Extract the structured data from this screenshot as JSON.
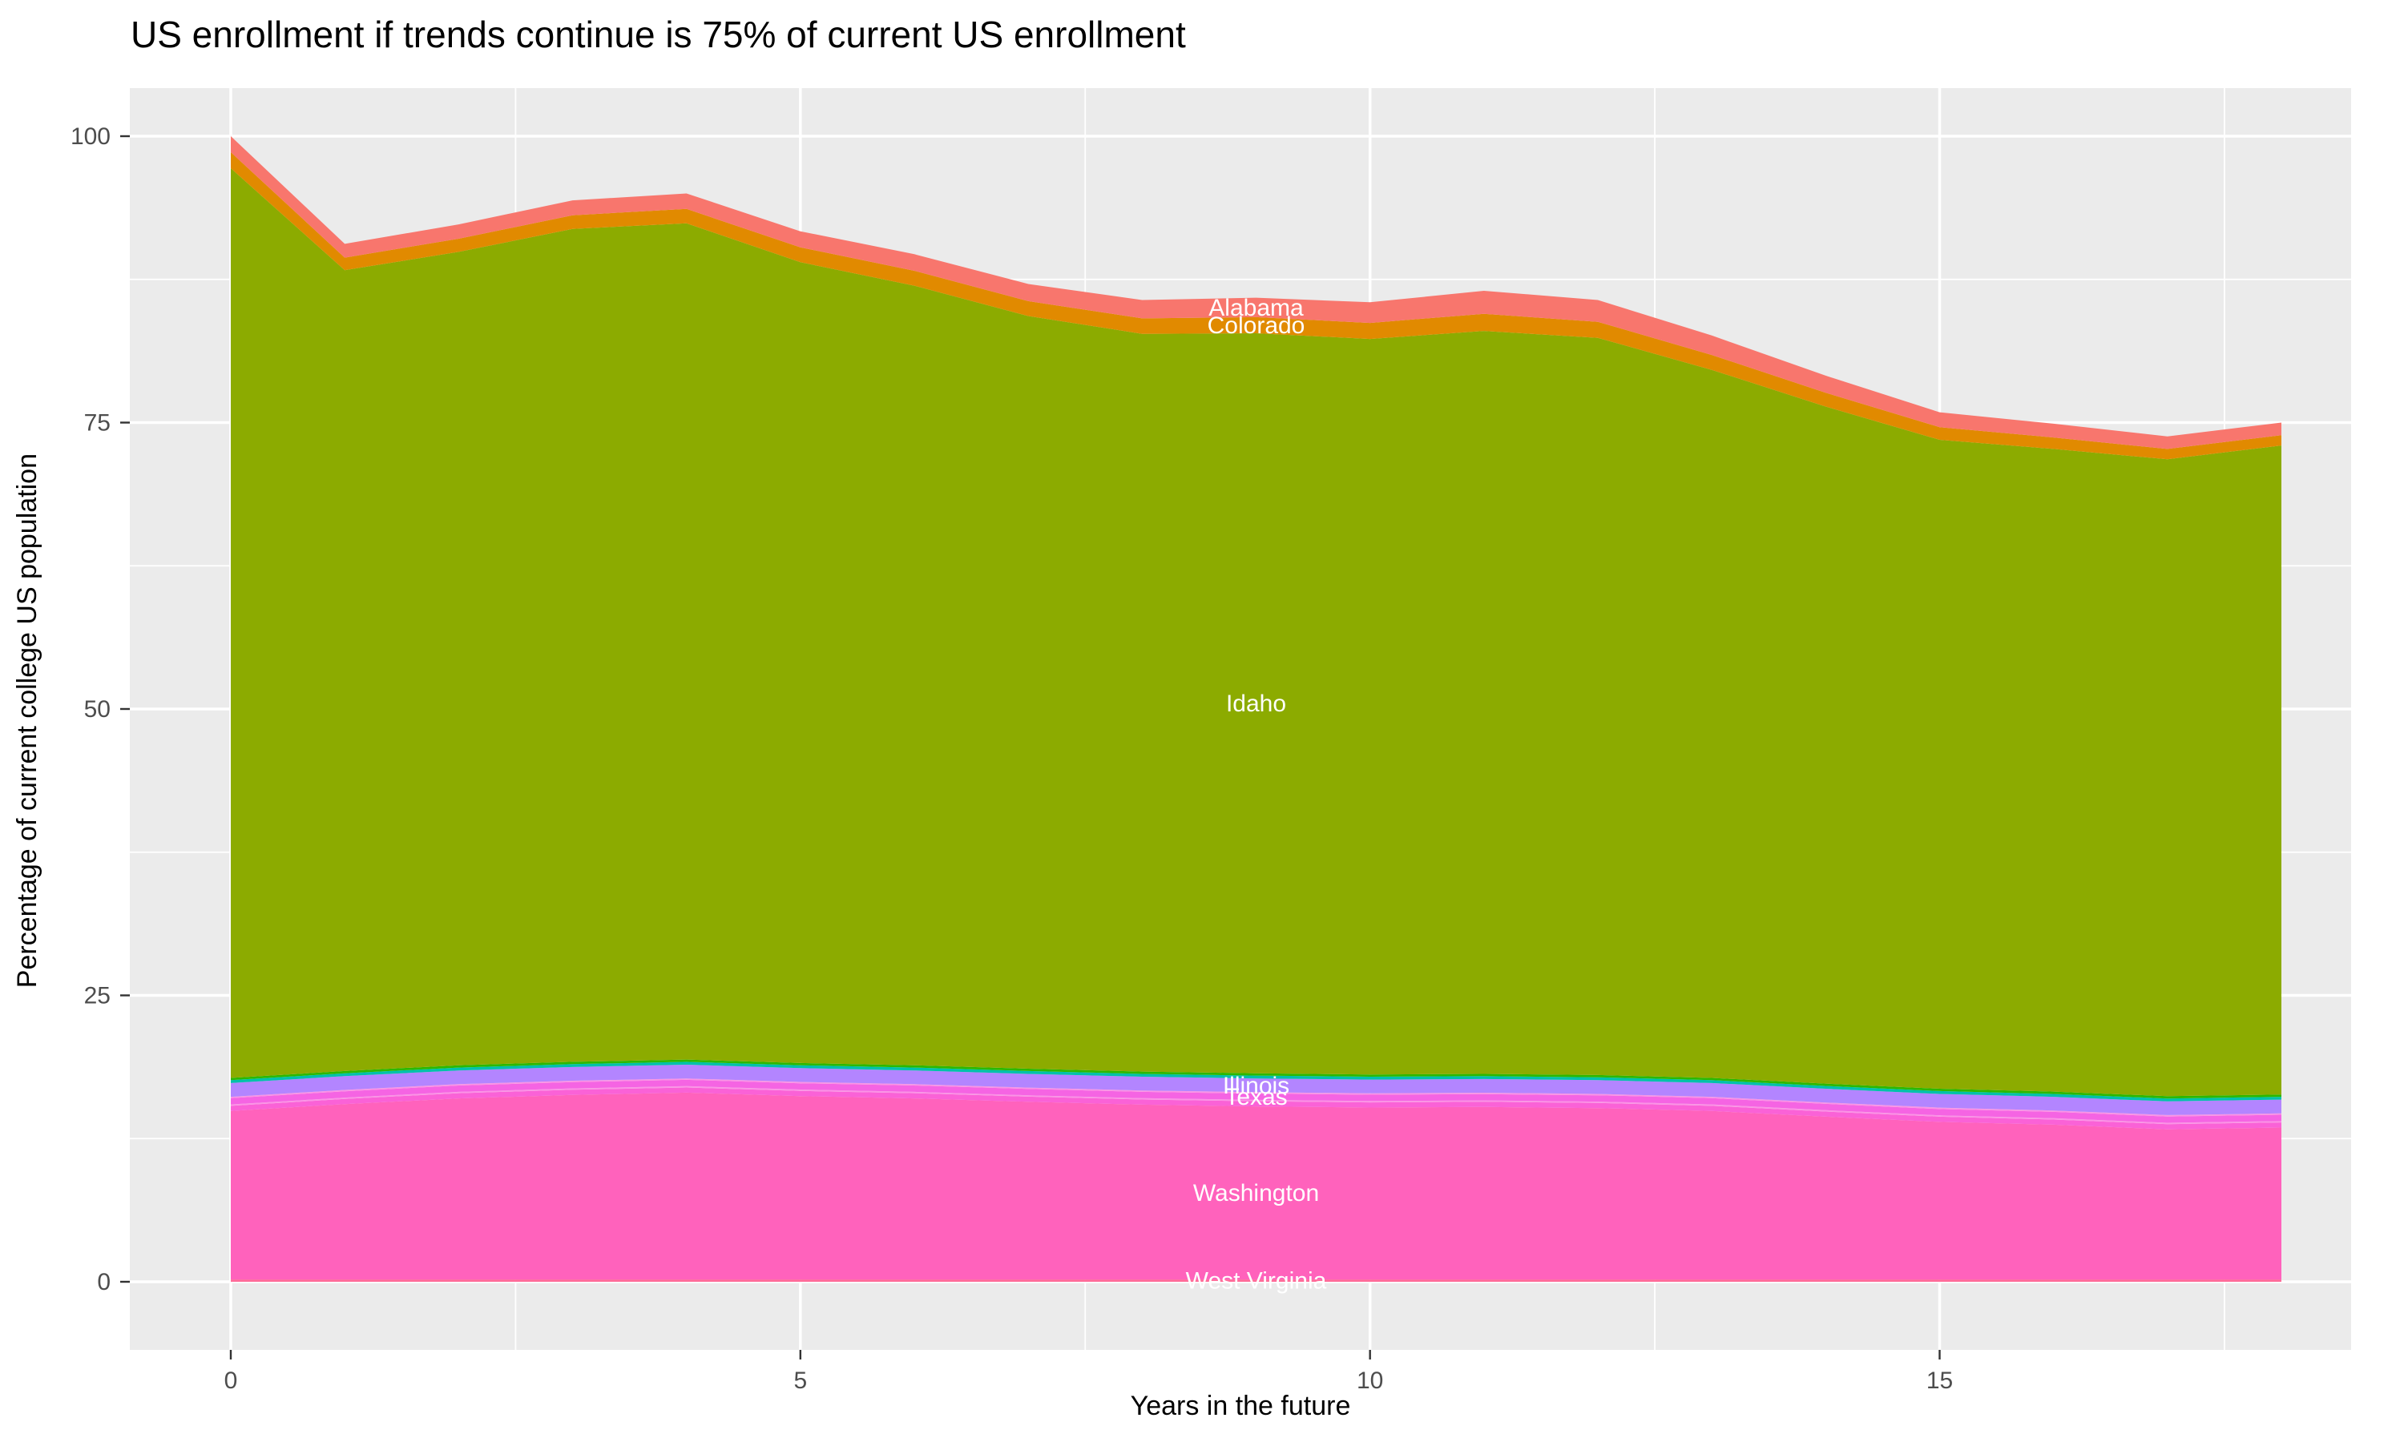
{
  "page": {
    "background": "#FFFFFF"
  },
  "chart_data": {
    "type": "area",
    "stacked": true,
    "title": "US enrollment if trends continue is 75% of current US enrollment",
    "xlabel": "Years in the future",
    "ylabel": "Percentage of current college US population",
    "x": [
      0,
      1,
      2,
      3,
      4,
      5,
      6,
      7,
      8,
      9,
      10,
      11,
      12,
      13,
      14,
      15,
      16,
      17,
      18
    ],
    "xlim": [
      0,
      18
    ],
    "ylim": [
      0,
      100
    ],
    "x_ticks": [
      0,
      5,
      10,
      15
    ],
    "x_minor_ticks": [
      2.5,
      7.5,
      12.5,
      17.5
    ],
    "y_ticks": [
      0,
      25,
      50,
      75,
      100
    ],
    "y_minor_ticks": [
      12.5,
      37.5,
      62.5,
      87.5
    ],
    "grid": true,
    "legend": "none",
    "panel_background": "#EBEBEB",
    "gridline_color": "#FFFFFF",
    "axis_text_color": "#4D4D4D",
    "tick_mark_color": "#333333",
    "area_label_color": "#FFFFFF",
    "area_label_x": 9,
    "total_at_year0": 100,
    "total_at_year18": 75,
    "series": [
      {
        "name": "west-virginia",
        "label": "West Virginia",
        "color": "#FF6A98",
        "values": [
          0.2,
          0.2,
          0.2,
          0.2,
          0.2,
          0.2,
          0.2,
          0.2,
          0.2,
          0.2,
          0.2,
          0.2,
          0.2,
          0.2,
          0.2,
          0.2,
          0.2,
          0.2,
          0.2
        ]
      },
      {
        "name": "washington",
        "label": "Washington",
        "color": "#FF62BC",
        "values": [
          14.71,
          15.31,
          15.81,
          16.11,
          16.31,
          16.01,
          15.81,
          15.51,
          15.26,
          15.11,
          15.01,
          15.06,
          14.96,
          14.71,
          14.21,
          13.76,
          13.51,
          13.11,
          13.26
        ]
      },
      {
        "name": "unlabeled-magenta-band",
        "label": "",
        "color": "#FA62D7",
        "values": [
          0.45,
          0.45,
          0.45,
          0.45,
          0.45,
          0.45,
          0.45,
          0.45,
          0.45,
          0.45,
          0.45,
          0.45,
          0.45,
          0.45,
          0.45,
          0.45,
          0.45,
          0.45,
          0.45
        ]
      },
      {
        "name": "unlabeled-pink-hairline-lower",
        "label": "",
        "color": "#FB93E5",
        "values": [
          0.12,
          0.12,
          0.12,
          0.12,
          0.12,
          0.12,
          0.12,
          0.12,
          0.12,
          0.12,
          0.12,
          0.12,
          0.12,
          0.12,
          0.12,
          0.12,
          0.12,
          0.12,
          0.12
        ]
      },
      {
        "name": "texas",
        "label": "Texas",
        "color": "#F564E3",
        "values": [
          0.55,
          0.55,
          0.55,
          0.55,
          0.55,
          0.55,
          0.55,
          0.55,
          0.55,
          0.55,
          0.55,
          0.55,
          0.55,
          0.55,
          0.55,
          0.55,
          0.55,
          0.55,
          0.55
        ]
      },
      {
        "name": "unlabeled-pink-hairline-upper",
        "label": "",
        "color": "#FB93E5",
        "values": [
          0.12,
          0.12,
          0.12,
          0.12,
          0.12,
          0.12,
          0.12,
          0.12,
          0.12,
          0.12,
          0.12,
          0.12,
          0.12,
          0.12,
          0.12,
          0.12,
          0.12,
          0.12,
          0.12
        ]
      },
      {
        "name": "illinois",
        "label": "Illinois",
        "color": "#B385FF",
        "values": [
          1.2,
          1.2,
          1.2,
          1.2,
          1.2,
          1.2,
          1.2,
          1.2,
          1.2,
          1.2,
          1.2,
          1.2,
          1.2,
          1.2,
          1.2,
          1.2,
          1.2,
          1.2,
          1.2
        ]
      },
      {
        "name": "unlabeled-teal-band",
        "label": "",
        "color": "#00C1AA",
        "values": [
          0.25,
          0.25,
          0.25,
          0.25,
          0.25,
          0.25,
          0.25,
          0.25,
          0.25,
          0.25,
          0.25,
          0.25,
          0.25,
          0.25,
          0.25,
          0.25,
          0.25,
          0.25,
          0.25
        ]
      },
      {
        "name": "unlabeled-green-band",
        "label": "",
        "color": "#2CB800",
        "values": [
          0.2,
          0.2,
          0.2,
          0.2,
          0.2,
          0.2,
          0.2,
          0.2,
          0.2,
          0.2,
          0.2,
          0.2,
          0.2,
          0.2,
          0.2,
          0.2,
          0.2,
          0.2,
          0.2
        ]
      },
      {
        "name": "idaho",
        "label": "Idaho",
        "color": "#8CAB00",
        "values": [
          79.4,
          69.9,
          71.0,
          72.7,
          73.0,
          69.9,
          68.05,
          65.7,
          64.4,
          64.6,
          64.2,
          64.85,
          64.35,
          61.8,
          59.1,
          56.65,
          56.1,
          55.6,
          56.65
        ]
      },
      {
        "name": "colorado",
        "label": "Colorado",
        "color": "#E18A00",
        "values": [
          1.4,
          1.1,
          1.15,
          1.2,
          1.25,
          1.3,
          1.3,
          1.3,
          1.35,
          1.4,
          1.4,
          1.5,
          1.4,
          1.3,
          1.2,
          1.1,
          1.0,
          0.9,
          0.9
        ]
      },
      {
        "name": "alabama",
        "label": "Alabama",
        "color": "#F8766D",
        "values": [
          1.4,
          1.2,
          1.25,
          1.3,
          1.35,
          1.4,
          1.45,
          1.5,
          1.6,
          1.7,
          1.8,
          2.0,
          1.9,
          1.7,
          1.5,
          1.3,
          1.2,
          1.1,
          1.1
        ]
      }
    ]
  }
}
